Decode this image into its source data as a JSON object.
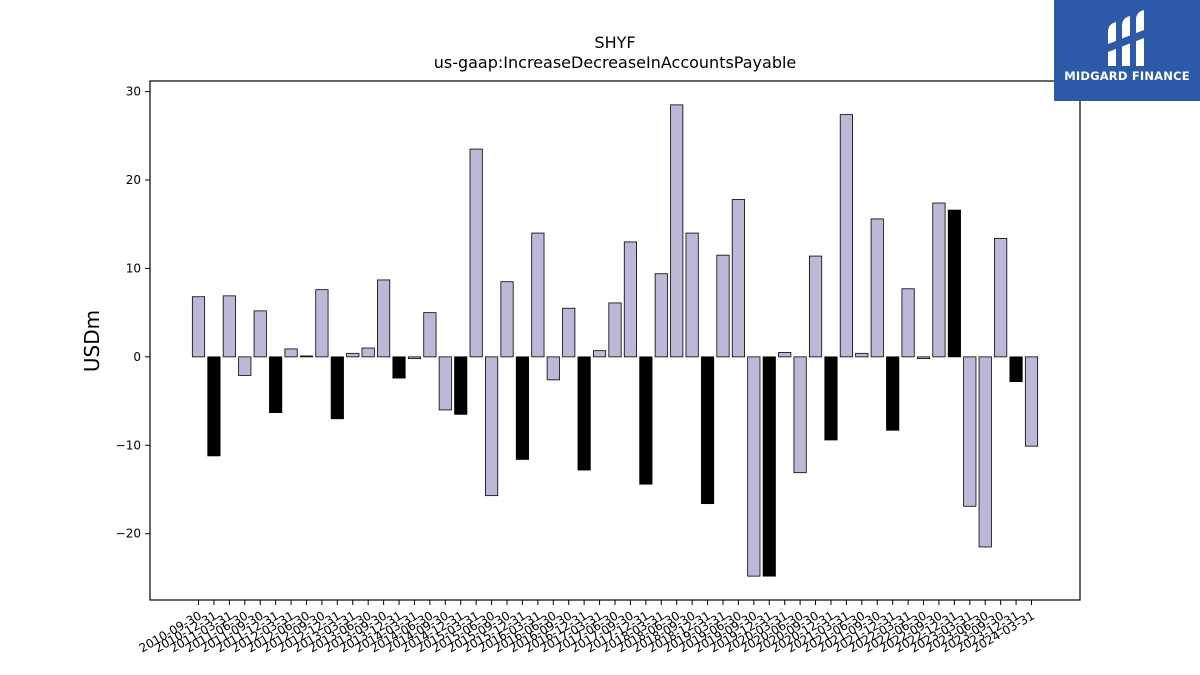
{
  "brand": {
    "name": "MIDGARD FINANCE",
    "bg_color": "#2d5aa8",
    "icon": "midgard-logo-icon"
  },
  "chart_data": {
    "type": "bar",
    "title": "SHYF",
    "subtitle": "us-gaap:IncreaseDecreaseInAccountsPayable",
    "xlabel": "",
    "ylabel": "USDm",
    "ylim": [
      -27.5,
      31.2
    ],
    "yticks": [
      -20,
      -10,
      0,
      10,
      20,
      30
    ],
    "grid": false,
    "colors": {
      "default": "#bcb8d8",
      "highlight": "#000000",
      "edge": "#000000"
    },
    "categories": [
      "2010-09-30",
      "2010-12-31",
      "2011-03-31",
      "2011-06-30",
      "2011-09-30",
      "2011-12-31",
      "2012-03-31",
      "2012-06-30",
      "2012-09-30",
      "2012-12-31",
      "2013-03-31",
      "2013-06-30",
      "2013-09-30",
      "2013-12-31",
      "2014-03-31",
      "2014-06-30",
      "2014-09-30",
      "2014-12-31",
      "2015-03-31",
      "2015-06-30",
      "2015-09-30",
      "2015-12-31",
      "2016-03-31",
      "2016-06-30",
      "2016-09-30",
      "2016-12-31",
      "2017-03-31",
      "2017-06-30",
      "2017-09-30",
      "2017-12-31",
      "2018-03-31",
      "2018-06-30",
      "2018-09-30",
      "2018-12-31",
      "2019-03-31",
      "2019-06-30",
      "2019-09-30",
      "2019-12-31",
      "2020-03-31",
      "2020-06-30",
      "2020-09-30",
      "2020-12-31",
      "2021-03-31",
      "2021-06-30",
      "2021-09-30",
      "2021-12-31",
      "2022-03-31",
      "2022-06-30",
      "2022-09-30",
      "2022-12-31",
      "2023-03-31",
      "2023-06-30",
      "2023-09-30",
      "2023-12-31",
      "2024-03-31"
    ],
    "values": [
      6.8,
      -11.2,
      6.9,
      -2.1,
      5.2,
      -6.3,
      0.9,
      0.1,
      7.6,
      -7.0,
      0.4,
      1.0,
      8.7,
      -2.4,
      -0.2,
      5.0,
      -6.0,
      -6.5,
      23.5,
      -15.7,
      8.5,
      -11.6,
      14.0,
      -2.6,
      5.5,
      -12.8,
      0.7,
      6.1,
      13.0,
      -14.4,
      9.4,
      28.5,
      14.0,
      -16.6,
      11.5,
      17.8,
      -24.8,
      -24.8,
      0.5,
      -13.1,
      11.4,
      -9.4,
      27.4,
      0.4,
      15.6,
      -8.3,
      7.7,
      -0.2,
      17.4,
      16.6,
      -16.9,
      -21.5,
      13.4,
      -2.8,
      -10.1
    ],
    "highlight": [
      false,
      true,
      false,
      false,
      false,
      true,
      false,
      false,
      false,
      true,
      false,
      false,
      false,
      true,
      false,
      false,
      false,
      true,
      false,
      false,
      false,
      true,
      false,
      false,
      false,
      true,
      false,
      false,
      false,
      true,
      false,
      false,
      false,
      true,
      false,
      false,
      false,
      true,
      false,
      false,
      false,
      true,
      false,
      false,
      false,
      true,
      false,
      false,
      false,
      true,
      false,
      false,
      false,
      true,
      false
    ]
  }
}
